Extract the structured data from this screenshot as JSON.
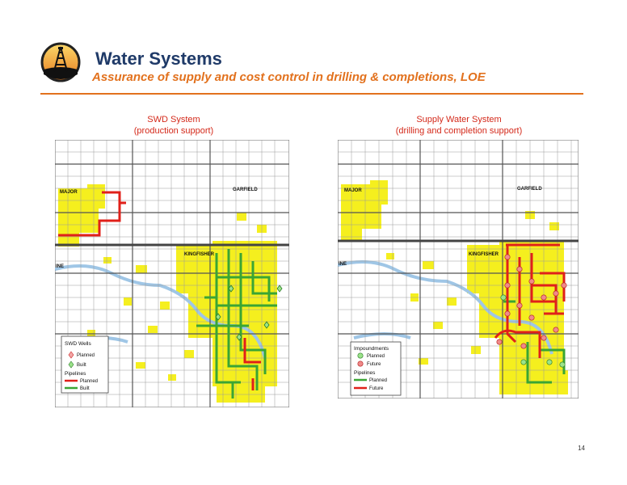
{
  "header": {
    "title": "Water Systems",
    "subtitle": "Assurance of supply and cost control in drilling & completions, LOE",
    "logo_icon": "oil-derrick-logo-icon"
  },
  "left_map": {
    "caption_line1": "SWD System",
    "caption_line2": "(production support)",
    "county_labels": [
      "MAJOR",
      "GARFIELD",
      "KINGFISHER",
      "INE"
    ],
    "legend": {
      "wells_title": "SWD Wells",
      "wells_items": [
        "Planned",
        "Built"
      ],
      "pipelines_title": "Pipelines",
      "pipelines_items": [
        "Planned",
        "Built"
      ]
    }
  },
  "right_map": {
    "caption_line1": "Supply Water System",
    "caption_line2": "(drilling and completion support)",
    "county_labels": [
      "MAJOR",
      "GARFIELD",
      "KINGFISHER",
      "INE"
    ],
    "legend": {
      "impound_title": "Impoundments",
      "impound_items": [
        "Planned",
        "Future"
      ],
      "pipelines_title": "Pipelines",
      "pipelines_items": [
        "Planned",
        "Future"
      ]
    }
  },
  "colors": {
    "title": "#1f3a68",
    "accent": "#e2711d",
    "caption": "#d4291a",
    "acreage": "#f5ef1e",
    "pipeline_red": "#e0201a",
    "pipeline_green": "#3aa534",
    "river": "#9fc6e6"
  },
  "footer": {
    "page_number": "14"
  }
}
